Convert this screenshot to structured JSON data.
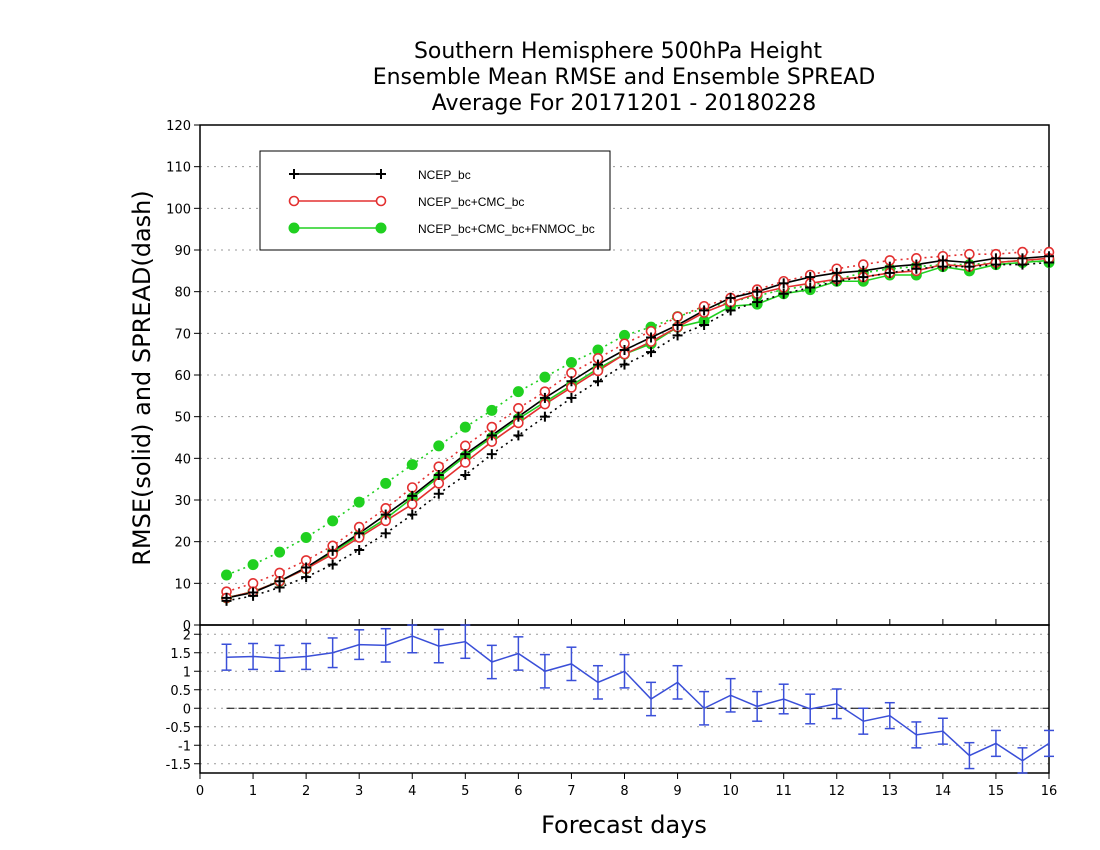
{
  "chart_data": [
    {
      "type": "line",
      "title": [
        "Southern Hemisphere 500hPa Height",
        "Ensemble Mean RMSE and Ensemble SPREAD",
        "Average For 20171201 - 20180228"
      ],
      "xlabel": "Forecast days",
      "ylabel": "RMSE(solid) and SPREAD(dash)",
      "xlim": [
        0,
        16
      ],
      "ylim": [
        0,
        120
      ],
      "x_ticks": [
        "0",
        "1",
        "2",
        "3",
        "4",
        "5",
        "6",
        "7",
        "8",
        "9",
        "10",
        "11",
        "12",
        "13",
        "14",
        "15",
        "16"
      ],
      "y_ticks": [
        "0",
        "10",
        "20",
        "30",
        "40",
        "50",
        "60",
        "70",
        "80",
        "90",
        "100",
        "110",
        "120"
      ],
      "grid": true,
      "legend_position": "top-left",
      "x": [
        0.5,
        1,
        1.5,
        2,
        2.5,
        3,
        3.5,
        4,
        4.5,
        5,
        5.5,
        6,
        6.5,
        7,
        7.5,
        8,
        8.5,
        9,
        9.5,
        10,
        10.5,
        11,
        11.5,
        12,
        12.5,
        13,
        13.5,
        14,
        14.5,
        15,
        15.5,
        16
      ],
      "series": [
        {
          "name": "NCEP_bc",
          "color": "#000000",
          "marker": "plus",
          "rmse": [
            6.5,
            7.8,
            10.5,
            13.8,
            17.8,
            22.0,
            26.5,
            31.0,
            36.0,
            41.0,
            45.5,
            50.0,
            54.5,
            58.5,
            62.5,
            66.0,
            69.0,
            72.0,
            75.5,
            78.5,
            80.0,
            82.0,
            83.5,
            84.5,
            85.0,
            86.0,
            86.5,
            87.5,
            87.0,
            88.0,
            88.0,
            88.5
          ],
          "spread": [
            5.8,
            7.0,
            9.0,
            11.5,
            14.5,
            18.0,
            22.0,
            26.5,
            31.5,
            36.0,
            41.0,
            45.5,
            50.0,
            54.5,
            58.5,
            62.5,
            65.5,
            69.5,
            72.0,
            75.5,
            77.5,
            79.5,
            81.0,
            82.5,
            83.5,
            84.5,
            85.5,
            86.0,
            86.0,
            86.5,
            86.5,
            87.0
          ]
        },
        {
          "name": "NCEP_bc+CMC_bc",
          "color": "#e33030",
          "marker": "open-circle",
          "rmse": [
            6.5,
            8.0,
            10.5,
            13.5,
            17.0,
            21.0,
            25.0,
            29.0,
            34.0,
            39.0,
            44.0,
            48.5,
            53.0,
            57.0,
            61.0,
            65.0,
            68.0,
            71.5,
            75.0,
            77.5,
            79.5,
            81.0,
            82.0,
            83.0,
            83.5,
            84.5,
            85.0,
            86.5,
            86.0,
            87.0,
            87.5,
            88.0
          ],
          "spread": [
            8.0,
            10.0,
            12.5,
            15.5,
            19.0,
            23.5,
            28.0,
            33.0,
            38.0,
            43.0,
            47.5,
            52.0,
            56.0,
            60.5,
            64.0,
            67.5,
            70.5,
            74.0,
            76.5,
            78.5,
            80.5,
            82.5,
            84.0,
            85.5,
            86.5,
            87.5,
            88.0,
            88.5,
            89.0,
            89.0,
            89.5,
            89.5
          ]
        },
        {
          "name": "NCEP_bc+CMC_bc+FNMOC_bc",
          "color": "#20d020",
          "marker": "filled-circle",
          "rmse": [
            6.5,
            8.0,
            10.5,
            13.5,
            17.5,
            21.5,
            25.5,
            30.5,
            35.5,
            40.5,
            45.0,
            49.5,
            53.5,
            57.5,
            61.5,
            65.0,
            67.5,
            71.5,
            73.0,
            76.5,
            77.0,
            79.5,
            80.5,
            82.5,
            82.5,
            84.0,
            84.0,
            86.0,
            85.0,
            86.5,
            87.0,
            87.5
          ],
          "spread": [
            12.0,
            14.5,
            17.5,
            21.0,
            25.0,
            29.5,
            34.0,
            38.5,
            43.0,
            47.5,
            51.5,
            56.0,
            59.5,
            63.0,
            66.0,
            69.5,
            71.5,
            74.0,
            76.0,
            77.5,
            79.0,
            80.5,
            81.5,
            83.0,
            84.5,
            85.5,
            86.0,
            86.5,
            86.5,
            87.0,
            87.5,
            87.0
          ]
        }
      ]
    },
    {
      "type": "line",
      "xlabel": "Forecast days",
      "xlim": [
        0,
        16
      ],
      "ylim": [
        -1.75,
        2.25
      ],
      "y_ticks": [
        "2",
        "1.5",
        "1",
        "0.5",
        "0",
        "-0.5",
        "-1",
        "-1.5"
      ],
      "grid": true,
      "reference_line": 0,
      "series": [
        {
          "color": "#3a4fd8",
          "marker": "error-bar",
          "x": [
            0.5,
            1,
            1.5,
            2,
            2.5,
            3,
            3.5,
            4,
            4.5,
            5,
            5.5,
            6,
            6.5,
            7,
            7.5,
            8,
            8.5,
            9,
            9.5,
            10,
            10.5,
            11,
            11.5,
            12,
            12.5,
            13,
            13.5,
            14,
            14.5,
            15,
            15.5,
            16
          ],
          "values": [
            1.38,
            1.4,
            1.35,
            1.4,
            1.5,
            1.72,
            1.7,
            1.95,
            1.68,
            1.8,
            1.25,
            1.48,
            1.0,
            1.2,
            0.7,
            1.0,
            0.25,
            0.7,
            0.0,
            0.35,
            0.05,
            0.25,
            -0.02,
            0.12,
            -0.35,
            -0.2,
            -0.72,
            -0.62,
            -1.28,
            -0.95,
            -1.42,
            -0.95
          ],
          "error": [
            0.35,
            0.35,
            0.35,
            0.35,
            0.4,
            0.4,
            0.45,
            0.45,
            0.45,
            0.45,
            0.45,
            0.45,
            0.45,
            0.45,
            0.45,
            0.45,
            0.45,
            0.45,
            0.45,
            0.45,
            0.4,
            0.4,
            0.4,
            0.4,
            0.35,
            0.35,
            0.35,
            0.35,
            0.35,
            0.35,
            0.35,
            0.35
          ]
        }
      ]
    }
  ]
}
